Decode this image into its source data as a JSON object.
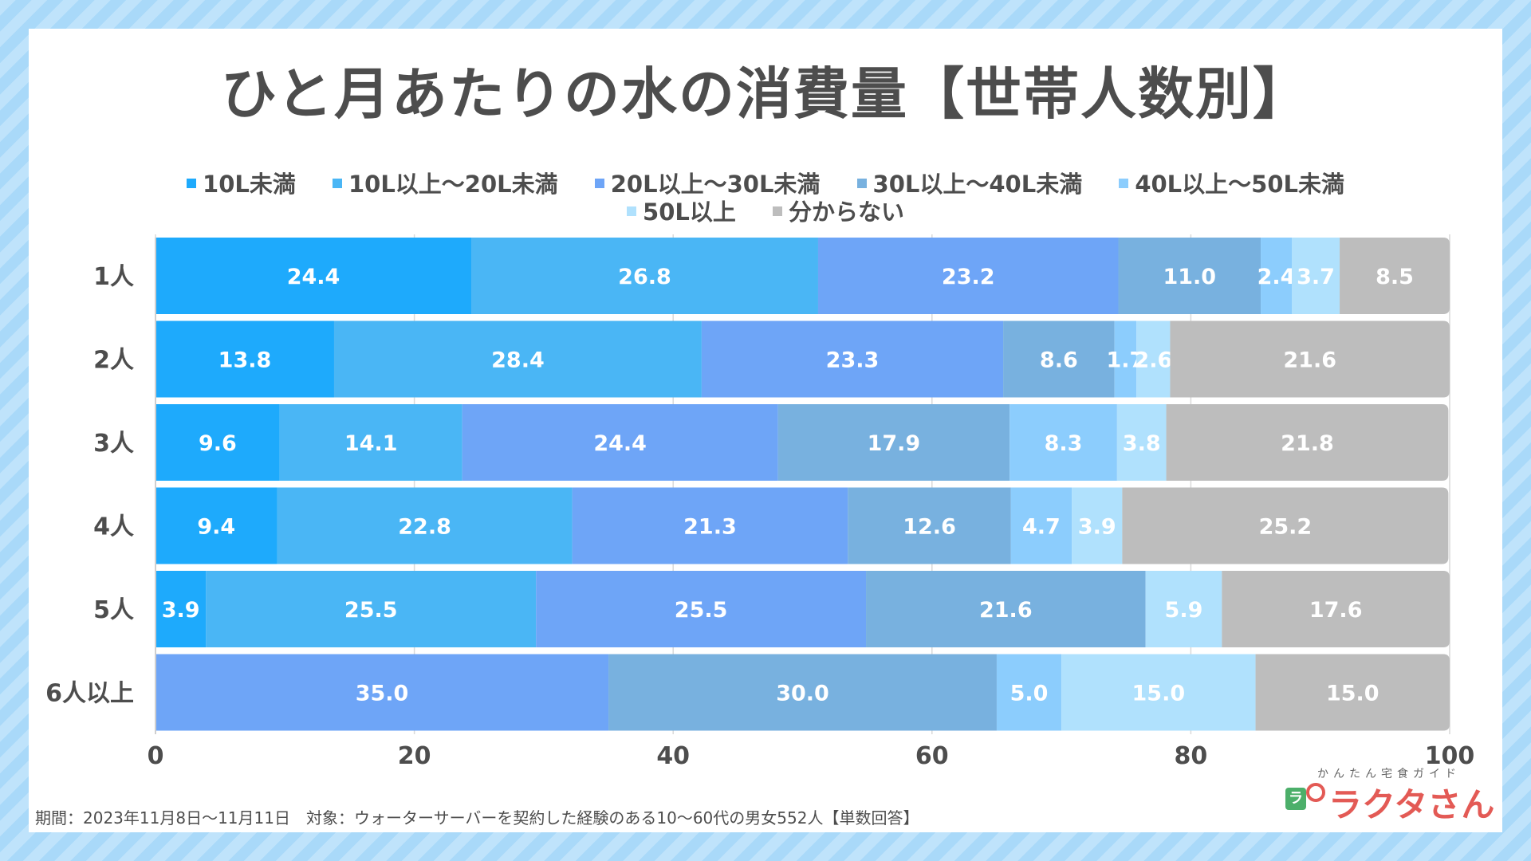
{
  "chart_data": {
    "type": "bar",
    "orientation": "horizontal",
    "stacked": true,
    "title": "ひと月あたりの水の消費量【世帯人数別】",
    "xlabel": "",
    "ylabel": "",
    "xlim": [
      0,
      100
    ],
    "xticks": [
      "0",
      "20",
      "40",
      "60",
      "80",
      "100"
    ],
    "grid": true,
    "legend_position": "top",
    "categories": [
      "1人",
      "2人",
      "3人",
      "4人",
      "5人",
      "6人以上"
    ],
    "series": [
      {
        "name": "10L未満",
        "color": "#1eaafc",
        "values": [
          24.4,
          13.8,
          9.6,
          9.4,
          3.9,
          0
        ]
      },
      {
        "name": "10L以上〜20L未満",
        "color": "#4ab6f5",
        "values": [
          26.8,
          28.4,
          14.1,
          22.8,
          25.5,
          0
        ]
      },
      {
        "name": "20L以上〜30L未満",
        "color": "#6ea5f7",
        "values": [
          23.2,
          23.3,
          24.4,
          21.3,
          25.5,
          35.0
        ]
      },
      {
        "name": "30L以上〜40L未満",
        "color": "#78b1df",
        "values": [
          11.0,
          8.6,
          17.9,
          12.6,
          21.6,
          30.0
        ]
      },
      {
        "name": "40L以上〜50L未満",
        "color": "#8ccdfd",
        "values": [
          2.4,
          1.7,
          8.3,
          4.7,
          0,
          5.0
        ]
      },
      {
        "name": "50L以上",
        "color": "#b0e1fd",
        "values": [
          3.7,
          2.6,
          3.8,
          3.9,
          5.9,
          15.0
        ]
      },
      {
        "name": "分からない",
        "color": "#bdbdbd",
        "values": [
          8.5,
          21.6,
          21.8,
          25.2,
          17.6,
          15.0
        ]
      }
    ],
    "data_labels": [
      [
        "24.4",
        "26.8",
        "23.2",
        "11.0",
        "2.4",
        "3.7",
        "8.5"
      ],
      [
        "13.8",
        "28.4",
        "23.3",
        "8.6",
        "1.7",
        "2.6",
        "21.6"
      ],
      [
        "9.6",
        "14.1",
        "24.4",
        "17.9",
        "8.3",
        "3.8",
        "21.8"
      ],
      [
        "9.4",
        "22.8",
        "21.3",
        "12.6",
        "4.7",
        "3.9",
        "25.2"
      ],
      [
        "3.9",
        "25.5",
        "25.5",
        "21.6",
        "",
        "5.9",
        "17.6"
      ],
      [
        "",
        "",
        "35.0",
        "30.0",
        "5.0",
        "15.0",
        "15.0"
      ]
    ]
  },
  "legend": {
    "row1": [
      "10L未満",
      "10L以上〜20L未満",
      "20L以上〜30L未満",
      "30L以上〜40L未満",
      "40L以上〜50L未満"
    ],
    "row2": [
      "50L以上",
      "分からない"
    ]
  },
  "footnote": "期間：2023年11月8日〜11月11日　対象：ウォーターサーバーを契約した経験のある10〜60代の男女552人【単数回答】",
  "logo": {
    "subtitle": "かんたん宅食ガイド",
    "name": "ラクタさん",
    "bag_glyph": "ラ"
  }
}
